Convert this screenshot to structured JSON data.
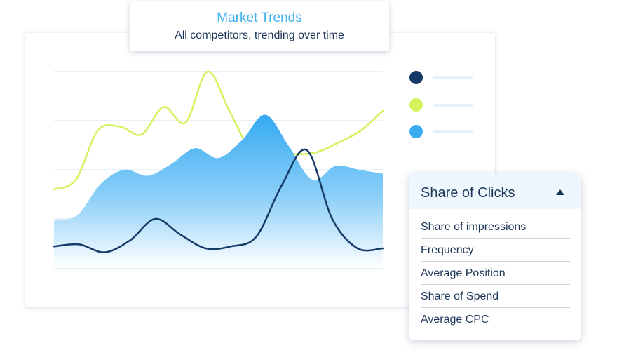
{
  "header": {
    "title": "Market Trends",
    "subtitle": "All competitors, trending over time"
  },
  "colors": {
    "navy": "#163a67",
    "lime": "#d3f25c",
    "blue": "#39adf2",
    "grid": "#e7f1f8"
  },
  "chart_data": {
    "type": "area",
    "title": "Market Trends",
    "subtitle": "All competitors, trending over time",
    "x_count": 20,
    "ylim": [
      0,
      100
    ],
    "grid": true,
    "legend": "right",
    "series": [
      {
        "color": "#d3f25c",
        "style": "line",
        "values": [
          40,
          45,
          70,
          72,
          68,
          82,
          74,
          100,
          80,
          60,
          60,
          58,
          59,
          64,
          70,
          80
        ]
      },
      {
        "color": "#39adf2",
        "style": "area",
        "values": [
          24,
          27,
          43,
          50,
          47,
          53,
          61,
          56,
          65,
          78,
          62,
          45,
          52,
          50,
          48
        ]
      },
      {
        "color": "#163a67",
        "style": "line",
        "values": [
          11,
          12,
          8,
          14,
          25,
          17,
          10,
          11,
          16,
          42,
          60,
          25,
          10,
          10
        ]
      }
    ]
  },
  "dropdown": {
    "selected": "Share of Clicks",
    "options": [
      "Share of impressions",
      "Frequency",
      "Average Position",
      "Share of Spend",
      "Average CPC"
    ]
  }
}
